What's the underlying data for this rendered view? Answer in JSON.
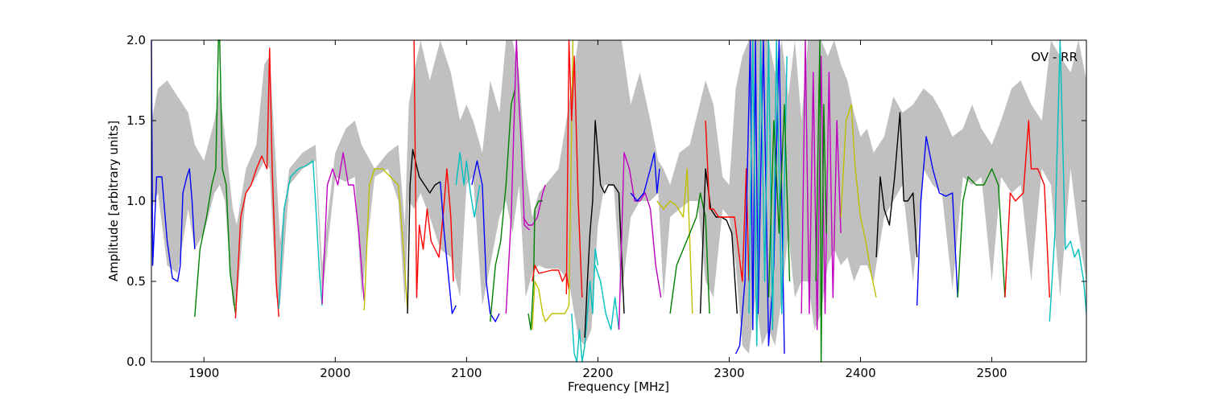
{
  "chart_data": {
    "type": "line",
    "title": "",
    "xlabel": "Frequency [MHz]",
    "ylabel": "Amplitude [arbitrary units]",
    "annotation": "OV - RR",
    "xlim": [
      1860,
      2572
    ],
    "ylim": [
      0.0,
      2.0
    ],
    "x_ticks": [
      1900,
      2000,
      2100,
      2200,
      2300,
      2400,
      2500
    ],
    "y_ticks": [
      0.0,
      0.5,
      1.0,
      1.5,
      2.0
    ],
    "x_tick_labels": [
      "1900",
      "2000",
      "2100",
      "2200",
      "2300",
      "2400",
      "2500"
    ],
    "y_tick_labels": [
      "0.0",
      "0.5",
      "1.0",
      "1.5",
      "2.0"
    ],
    "grid": false,
    "background_band": {
      "color": "#c0c0c0",
      "x": [
        1860,
        1865,
        1872,
        1880,
        1888,
        1893,
        1900,
        1908,
        1912,
        1916,
        1922,
        1925,
        1932,
        1940,
        1946,
        1950,
        1955,
        1958,
        1965,
        1975,
        1985,
        1990,
        2000,
        2008,
        2015,
        2020,
        2030,
        2040,
        2048,
        2053,
        2056,
        2060,
        2065,
        2072,
        2080,
        2088,
        2095,
        2100,
        2105,
        2112,
        2118,
        2125,
        2130,
        2135,
        2140,
        2145,
        2150,
        2155,
        2160,
        2170,
        2178,
        2185,
        2190,
        2195,
        2200,
        2205,
        2212,
        2218,
        2225,
        2232,
        2240,
        2246,
        2250,
        2255,
        2262,
        2270,
        2276,
        2282,
        2288,
        2295,
        2300,
        2305,
        2310,
        2315,
        2320,
        2325,
        2330,
        2335,
        2340,
        2345,
        2350,
        2355,
        2360,
        2365,
        2370,
        2375,
        2380,
        2385,
        2390,
        2395,
        2400,
        2405,
        2410,
        2418,
        2425,
        2432,
        2440,
        2448,
        2455,
        2462,
        2470,
        2478,
        2485,
        2492,
        2500,
        2507,
        2515,
        2522,
        2530,
        2538,
        2545,
        2552,
        2560,
        2566,
        2572
      ],
      "upper": [
        1.5,
        1.7,
        1.75,
        1.65,
        1.55,
        1.35,
        1.25,
        1.5,
        1.7,
        1.4,
        0.95,
        0.85,
        1.2,
        1.35,
        1.85,
        1.9,
        1.2,
        0.75,
        1.2,
        1.3,
        1.35,
        0.6,
        1.3,
        1.45,
        1.5,
        1.35,
        1.2,
        1.3,
        1.35,
        0.85,
        1.6,
        1.8,
        2.0,
        1.75,
        2.0,
        1.8,
        1.5,
        1.6,
        1.5,
        1.3,
        1.75,
        1.55,
        2.0,
        2.0,
        1.8,
        1.2,
        0.9,
        1.05,
        1.1,
        1.2,
        1.6,
        2.0,
        2.0,
        2.0,
        2.0,
        2.0,
        2.0,
        2.0,
        1.6,
        1.8,
        1.5,
        1.25,
        1.2,
        1.1,
        1.3,
        1.35,
        1.55,
        1.75,
        1.6,
        1.15,
        1.1,
        1.7,
        1.9,
        2.0,
        2.0,
        2.0,
        2.0,
        1.8,
        2.0,
        1.65,
        2.0,
        1.5,
        2.0,
        2.0,
        2.0,
        1.9,
        2.0,
        1.85,
        1.75,
        1.55,
        1.4,
        1.45,
        1.3,
        1.4,
        1.65,
        1.55,
        1.6,
        1.7,
        1.65,
        1.55,
        1.4,
        1.45,
        1.6,
        1.45,
        1.35,
        1.5,
        1.7,
        1.75,
        1.6,
        1.5,
        2.0,
        1.9,
        1.8,
        2.0,
        1.75
      ],
      "lower": [
        0.95,
        1.05,
        0.6,
        0.55,
        0.95,
        0.7,
        0.8,
        1.05,
        1.1,
        1.0,
        0.35,
        0.35,
        1.05,
        1.15,
        1.25,
        1.2,
        0.4,
        0.35,
        1.1,
        1.2,
        1.25,
        0.4,
        1.15,
        1.12,
        1.15,
        0.4,
        1.15,
        1.2,
        1.0,
        0.35,
        1.0,
        0.95,
        1.05,
        0.9,
        0.7,
        0.65,
        0.4,
        1.1,
        1.15,
        0.35,
        0.6,
        0.9,
        1.0,
        0.8,
        1.1,
        0.4,
        0.55,
        0.6,
        0.58,
        0.58,
        0.5,
        0.15,
        0.1,
        0.2,
        0.85,
        1.1,
        1.1,
        0.4,
        0.9,
        1.0,
        1.0,
        1.05,
        0.4,
        0.9,
        0.95,
        1.0,
        1.0,
        0.5,
        0.4,
        0.95,
        0.9,
        0.6,
        0.1,
        0.05,
        0.4,
        0.1,
        0.2,
        0.1,
        0.4,
        0.8,
        0.4,
        0.5,
        0.5,
        0.2,
        0.3,
        0.6,
        0.7,
        0.6,
        0.65,
        0.5,
        0.6,
        0.6,
        0.5,
        0.9,
        1.0,
        1.1,
        0.5,
        1.2,
        1.1,
        1.05,
        0.45,
        1.15,
        1.1,
        1.15,
        0.5,
        1.15,
        1.05,
        1.1,
        0.5,
        1.2,
        1.1,
        0.4,
        1.2,
        0.8,
        0.5
      ]
    },
    "series": [
      {
        "color": "#0000ff",
        "x": [
          1860,
          1861,
          1864,
          1868,
          1872,
          1876,
          1880,
          1882,
          1884,
          1887,
          1889,
          1891,
          1893
        ],
        "y": [
          2.0,
          0.6,
          1.15,
          1.15,
          0.75,
          0.52,
          0.5,
          0.6,
          1.05,
          1.15,
          1.2,
          1.0,
          0.7
        ]
      },
      {
        "color": "#008000",
        "x": [
          1893,
          1897,
          1902,
          1906,
          1909,
          1911,
          1912,
          1914,
          1917,
          1920,
          1924
        ],
        "y": [
          0.28,
          0.7,
          0.9,
          1.1,
          1.2,
          2.0,
          2.0,
          1.2,
          1.1,
          0.55,
          0.3
        ]
      },
      {
        "color": "#ff0000",
        "x": [
          1924,
          1928,
          1932,
          1936,
          1940,
          1944,
          1948,
          1950,
          1952,
          1955,
          1957
        ],
        "y": [
          0.27,
          0.9,
          1.05,
          1.1,
          1.2,
          1.28,
          1.2,
          1.95,
          1.2,
          0.5,
          0.28
        ]
      },
      {
        "color": "#00bfbf",
        "x": [
          1957,
          1961,
          1966,
          1972,
          1978,
          1983,
          1985,
          1988,
          1990
        ],
        "y": [
          0.33,
          0.95,
          1.15,
          1.2,
          1.22,
          1.25,
          1.0,
          0.55,
          0.35
        ]
      },
      {
        "color": "#bf00bf",
        "x": [
          1990,
          1994,
          1998,
          2002,
          2006,
          2010,
          2014,
          2018,
          2022
        ],
        "y": [
          0.36,
          1.1,
          1.2,
          1.1,
          1.3,
          1.1,
          1.1,
          0.8,
          0.38
        ]
      },
      {
        "color": "#bfbf00",
        "x": [
          2022,
          2026,
          2030,
          2036,
          2042,
          2048,
          2052,
          2055
        ],
        "y": [
          0.32,
          1.1,
          1.2,
          1.2,
          1.15,
          1.1,
          0.7,
          0.32
        ]
      },
      {
        "color": "#000000",
        "x": [
          2055,
          2057,
          2059,
          2061,
          2064,
          2068,
          2072,
          2076,
          2080
        ],
        "y": [
          0.3,
          1.1,
          1.32,
          1.25,
          1.15,
          1.1,
          1.05,
          1.1,
          1.12
        ]
      },
      {
        "color": "#ff0000",
        "x": [
          2060,
          2062,
          2064,
          2067,
          2070,
          2073,
          2076,
          2079,
          2082,
          2085,
          2088,
          2090
        ],
        "y": [
          2.0,
          0.4,
          0.85,
          0.7,
          0.95,
          0.75,
          0.7,
          0.65,
          0.9,
          1.2,
          0.9,
          0.5
        ]
      },
      {
        "color": "#0000ff",
        "x": [
          2080,
          2083,
          2086,
          2089,
          2092
        ],
        "y": [
          1.12,
          0.8,
          0.55,
          0.3,
          0.35
        ]
      },
      {
        "color": "#00bfbf",
        "x": [
          2092,
          2095,
          2098,
          2100,
          2103,
          2106,
          2110
        ],
        "y": [
          1.1,
          1.3,
          1.1,
          1.25,
          1.05,
          0.9,
          1.1
        ]
      },
      {
        "color": "#0000ff",
        "x": [
          2104,
          2108,
          2112,
          2115,
          2118,
          2122,
          2125
        ],
        "y": [
          1.1,
          1.25,
          1.1,
          0.5,
          0.3,
          0.25,
          0.3
        ]
      },
      {
        "color": "#008000",
        "x": [
          2118,
          2122,
          2126,
          2130,
          2134,
          2137
        ],
        "y": [
          0.25,
          0.6,
          0.75,
          1.1,
          1.6,
          1.7
        ]
      },
      {
        "color": "#bf00bf",
        "x": [
          2130,
          2134,
          2138,
          2140,
          2142,
          2144,
          2148
        ],
        "y": [
          0.3,
          0.9,
          2.0,
          1.6,
          1.3,
          0.85,
          0.82
        ]
      },
      {
        "color": "#bf00bf",
        "x": [
          2143,
          2147,
          2150,
          2154,
          2158,
          2160
        ],
        "y": [
          0.9,
          0.85,
          0.85,
          0.9,
          1.05,
          1.1
        ]
      },
      {
        "color": "#008000",
        "x": [
          2147,
          2149,
          2151,
          2152,
          2155,
          2158
        ],
        "y": [
          0.3,
          0.2,
          0.5,
          0.95,
          1.0,
          1.0
        ]
      },
      {
        "color": "#ff0000",
        "x": [
          2150,
          2152,
          2155,
          2160,
          2165,
          2170,
          2173,
          2176,
          2178
        ],
        "y": [
          0.5,
          0.6,
          0.55,
          0.56,
          0.57,
          0.57,
          0.5,
          0.55,
          0.45
        ]
      },
      {
        "color": "#bfbf00",
        "x": [
          2150,
          2152,
          2155,
          2158,
          2160,
          2165,
          2170,
          2175,
          2178,
          2181
        ],
        "y": [
          0.2,
          0.5,
          0.45,
          0.3,
          0.25,
          0.3,
          0.3,
          0.3,
          0.35,
          2.0
        ]
      },
      {
        "color": "#ff0000",
        "x": [
          2176,
          2178,
          2180,
          2182,
          2185,
          2188
        ],
        "y": [
          0.42,
          2.0,
          1.5,
          1.9,
          1.0,
          0.4
        ]
      },
      {
        "color": "#00bfbf",
        "x": [
          2180,
          2182,
          2184,
          2186,
          2188,
          2190,
          2192,
          2194,
          2196,
          2198,
          2200
        ],
        "y": [
          0.3,
          0.05,
          0.0,
          0.2,
          0.0,
          0.1,
          0.3,
          0.5,
          0.3,
          0.7,
          0.6
        ]
      },
      {
        "color": "#000000",
        "x": [
          2190,
          2192,
          2194,
          2196,
          2198,
          2200,
          2202,
          2205,
          2208,
          2212,
          2216,
          2220
        ],
        "y": [
          0.15,
          0.5,
          0.8,
          1.0,
          1.5,
          1.3,
          1.1,
          1.05,
          1.1,
          1.1,
          1.05,
          0.3
        ]
      },
      {
        "color": "#00bfbf",
        "x": [
          2198,
          2202,
          2206,
          2210,
          2213,
          2216
        ],
        "y": [
          0.6,
          0.5,
          0.3,
          0.2,
          0.4,
          0.2
        ]
      },
      {
        "color": "#bf00bf",
        "x": [
          2216,
          2220,
          2224,
          2228,
          2232,
          2236,
          2240,
          2244,
          2248
        ],
        "y": [
          0.2,
          1.3,
          1.2,
          1.0,
          1.0,
          1.05,
          0.95,
          0.6,
          0.4
        ]
      },
      {
        "color": "#0000ff",
        "x": [
          2225,
          2230,
          2235,
          2240,
          2243,
          2245,
          2247
        ],
        "y": [
          1.05,
          1.0,
          1.05,
          1.2,
          1.3,
          1.05,
          1.2
        ]
      },
      {
        "color": "#bfbf00",
        "x": [
          2245,
          2250,
          2255,
          2260,
          2265,
          2268,
          2272
        ],
        "y": [
          1.0,
          0.95,
          1.0,
          0.97,
          0.9,
          1.2,
          0.3
        ]
      },
      {
        "color": "#008000",
        "x": [
          2255,
          2260,
          2265,
          2270,
          2275,
          2278,
          2282,
          2285
        ],
        "y": [
          0.3,
          0.6,
          0.7,
          0.8,
          0.9,
          1.05,
          0.9,
          0.3
        ]
      },
      {
        "color": "#000000",
        "x": [
          2278,
          2282,
          2286,
          2290,
          2294,
          2298,
          2302,
          2306
        ],
        "y": [
          0.3,
          1.2,
          0.95,
          0.9,
          0.9,
          0.88,
          0.8,
          0.3
        ]
      },
      {
        "color": "#ff0000",
        "x": [
          2282,
          2285,
          2288,
          2292,
          2296,
          2300,
          2304,
          2310,
          2313,
          2315
        ],
        "y": [
          1.5,
          0.95,
          0.95,
          0.9,
          0.9,
          0.9,
          0.9,
          0.5,
          1.2,
          0.5
        ]
      },
      {
        "color": "#0000ff",
        "x": [
          2305,
          2308,
          2312,
          2316,
          2318,
          2320,
          2322,
          2326,
          2330,
          2334,
          2338,
          2342
        ],
        "y": [
          0.05,
          0.1,
          0.5,
          2.0,
          0.2,
          2.0,
          0.3,
          2.0,
          0.1,
          0.6,
          2.0,
          0.05
        ]
      },
      {
        "color": "#00bfbf",
        "x": [
          2315,
          2318,
          2321,
          2324,
          2327,
          2330,
          2333,
          2336,
          2340,
          2344
        ],
        "y": [
          0.3,
          2.0,
          0.1,
          2.0,
          0.5,
          2.0,
          0.2,
          2.0,
          0.3,
          1.9
        ]
      },
      {
        "color": "#008000",
        "x": [
          2330,
          2334,
          2338,
          2342,
          2346
        ],
        "y": [
          0.4,
          1.5,
          0.8,
          1.6,
          0.5
        ]
      },
      {
        "color": "#bf00bf",
        "x": [
          2355,
          2358,
          2361,
          2364,
          2367,
          2370,
          2373,
          2376,
          2379,
          2382,
          2385
        ],
        "y": [
          0.3,
          2.0,
          0.3,
          1.8,
          0.2,
          1.9,
          0.3,
          1.8,
          0.4,
          1.5,
          0.8
        ]
      },
      {
        "color": "#008000",
        "x": [
          2366,
          2369,
          2370,
          2372,
          2374
        ],
        "y": [
          0.5,
          2.0,
          0.0,
          1.6,
          0.8
        ]
      },
      {
        "color": "#bfbf00",
        "x": [
          2385,
          2389,
          2393,
          2396,
          2400,
          2404,
          2408,
          2412
        ],
        "y": [
          0.9,
          1.5,
          1.6,
          1.2,
          0.9,
          0.75,
          0.55,
          0.4
        ]
      },
      {
        "color": "#000000",
        "x": [
          2412,
          2415,
          2418,
          2422,
          2426,
          2430,
          2433,
          2436,
          2440,
          2443
        ],
        "y": [
          0.65,
          1.15,
          0.95,
          0.85,
          1.15,
          1.55,
          1.0,
          1.0,
          1.05,
          0.65
        ]
      },
      {
        "color": "#0000ff",
        "x": [
          2443,
          2446,
          2450,
          2455,
          2460,
          2465,
          2470,
          2474
        ],
        "y": [
          0.35,
          1.0,
          1.4,
          1.2,
          1.05,
          1.03,
          1.05,
          0.4
        ]
      },
      {
        "color": "#008000",
        "x": [
          2474,
          2478,
          2482,
          2488,
          2494,
          2500,
          2505,
          2510
        ],
        "y": [
          0.4,
          1.0,
          1.15,
          1.1,
          1.1,
          1.2,
          1.1,
          0.4
        ]
      },
      {
        "color": "#ff0000",
        "x": [
          2510,
          2514,
          2518,
          2524,
          2528,
          2530,
          2535,
          2540,
          2544
        ],
        "y": [
          0.4,
          1.05,
          1.0,
          1.05,
          1.5,
          1.2,
          1.2,
          1.1,
          0.4
        ]
      },
      {
        "color": "#00bfbf",
        "x": [
          2544,
          2548,
          2552,
          2556,
          2560,
          2563,
          2566,
          2570,
          2572
        ],
        "y": [
          0.25,
          0.8,
          2.0,
          0.7,
          0.75,
          0.65,
          0.7,
          0.5,
          0.3
        ]
      }
    ]
  }
}
